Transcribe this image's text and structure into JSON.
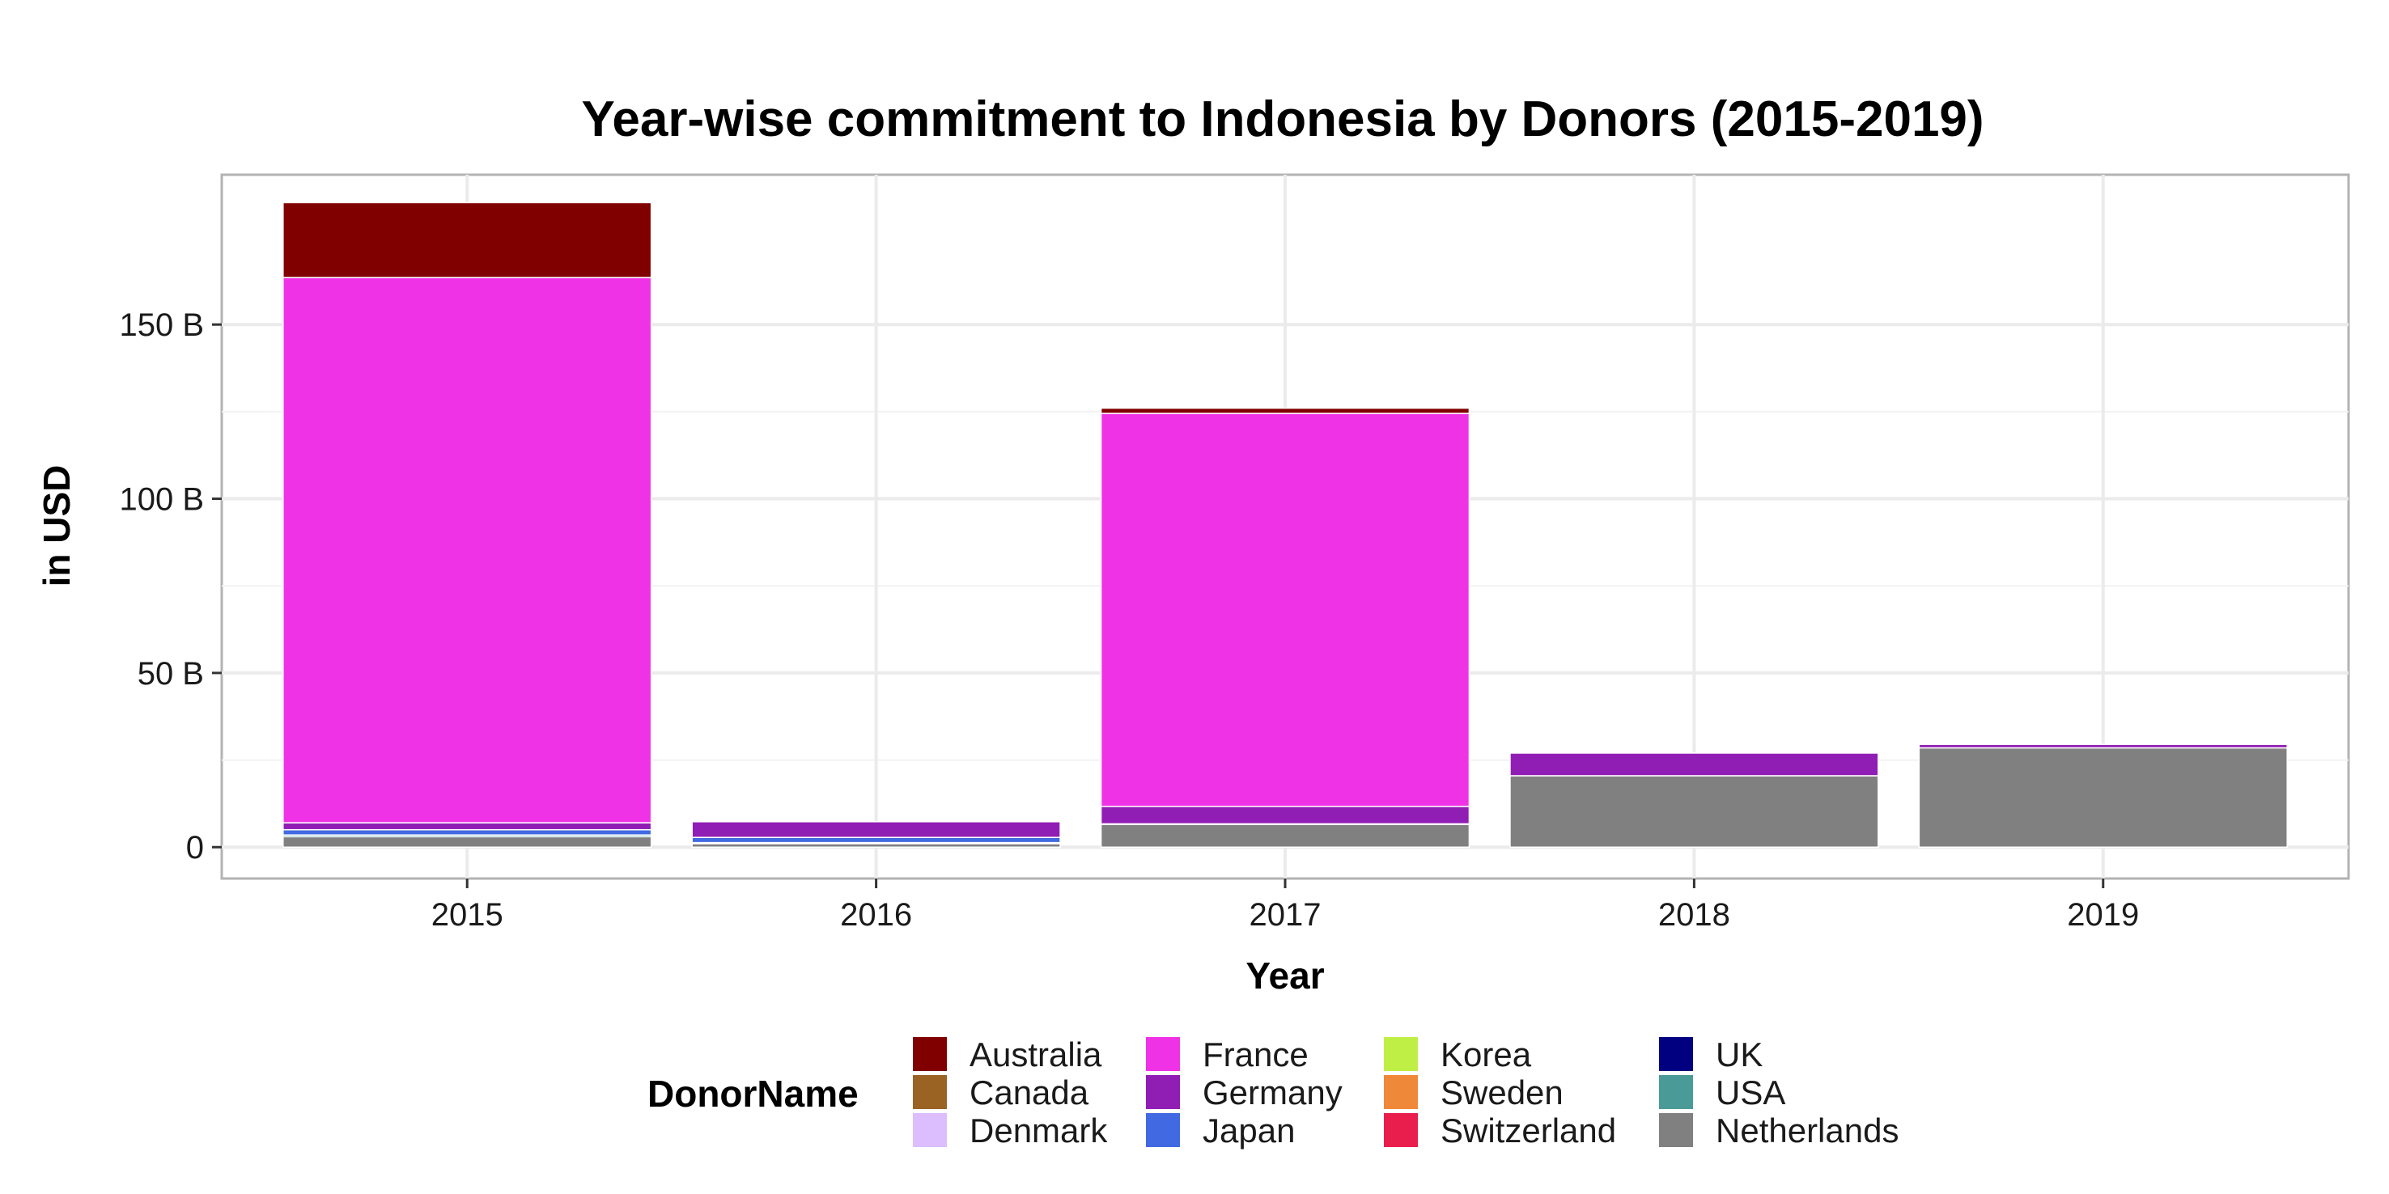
{
  "chart_data": {
    "type": "bar",
    "stacked": true,
    "title": "Year-wise commitment to Indonesia by Donors (2015-2019)",
    "xlabel": "Year",
    "ylabel": "in USD",
    "ylim": [
      -9,
      193
    ],
    "y_ticks": [
      {
        "value": 0,
        "label": "0"
      },
      {
        "value": 50,
        "label": "50 B"
      },
      {
        "value": 100,
        "label": "100 B"
      },
      {
        "value": 150,
        "label": "150 B"
      }
    ],
    "categories": [
      "2015",
      "2016",
      "2017",
      "2018",
      "2019"
    ],
    "y_unit": "billion USD",
    "grid": true,
    "legend": {
      "title": "DonorName",
      "position": "bottom",
      "columns": [
        [
          "Australia",
          "Canada",
          "Denmark"
        ],
        [
          "France",
          "Germany",
          "Japan"
        ],
        [
          "Korea",
          "Sweden",
          "Switzerland"
        ],
        [
          "UK",
          "USA",
          "Netherlands"
        ]
      ]
    },
    "series": [
      {
        "name": "Netherlands",
        "color": "#808080",
        "values": [
          3.0,
          1.0,
          6.5,
          20.5,
          28.5
        ]
      },
      {
        "name": "USA",
        "color": "#4A9A98",
        "values": [
          0.5,
          0.3,
          0.2,
          0.0,
          0.0
        ]
      },
      {
        "name": "UK",
        "color": "#000080",
        "values": [
          0.0,
          0.0,
          0.0,
          0.0,
          0.0
        ]
      },
      {
        "name": "Switzerland",
        "color": "#E91E4D",
        "values": [
          0.0,
          0.0,
          0.0,
          0.0,
          0.0
        ]
      },
      {
        "name": "Sweden",
        "color": "#F0883A",
        "values": [
          0.0,
          0.0,
          0.0,
          0.0,
          0.0
        ]
      },
      {
        "name": "Korea",
        "color": "#BFEF45",
        "values": [
          0.0,
          0.0,
          0.0,
          0.0,
          0.0
        ]
      },
      {
        "name": "Japan",
        "color": "#4169E1",
        "values": [
          1.5,
          1.5,
          0.0,
          0.0,
          0.0
        ]
      },
      {
        "name": "Germany",
        "color": "#911EB4",
        "values": [
          2.0,
          4.5,
          5.0,
          6.5,
          1.0
        ]
      },
      {
        "name": "France",
        "color": "#F032E6",
        "values": [
          156.5,
          0.0,
          112.8,
          0.0,
          0.0
        ]
      },
      {
        "name": "Denmark",
        "color": "#DCBEFF",
        "values": [
          0.0,
          0.0,
          0.0,
          0.0,
          0.0
        ]
      },
      {
        "name": "Canada",
        "color": "#9A6324",
        "values": [
          0.0,
          0.0,
          0.0,
          0.0,
          0.0
        ]
      },
      {
        "name": "Australia",
        "color": "#800000",
        "values": [
          21.5,
          0.0,
          1.5,
          0.0,
          0.0
        ]
      }
    ]
  }
}
